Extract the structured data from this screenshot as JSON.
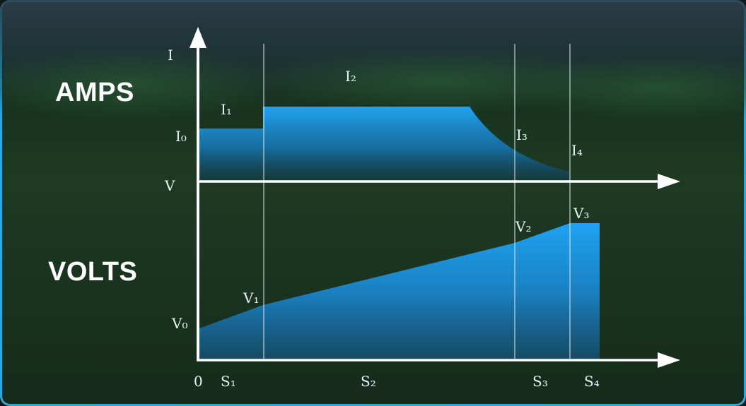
{
  "headings": {
    "amps": "AMPS",
    "volts": "VOLTS"
  },
  "axis_labels": {
    "current": "I",
    "voltage": "V",
    "origin": "0"
  },
  "current_labels": {
    "i0": "I₀",
    "i1": "I₁",
    "i2": "I₂",
    "i3": "I₃",
    "i4": "I₄"
  },
  "voltage_labels": {
    "v0": "V₀",
    "v1": "V₁",
    "v2": "V₂",
    "v3": "V₃"
  },
  "stage_labels": {
    "s1": "S₁",
    "s2": "S₂",
    "s3": "S₃",
    "s4": "S₄"
  },
  "colors": {
    "fill_blue": "#1e9be8",
    "line_white": "#ffffff",
    "frame": "#2fa9dd"
  }
}
